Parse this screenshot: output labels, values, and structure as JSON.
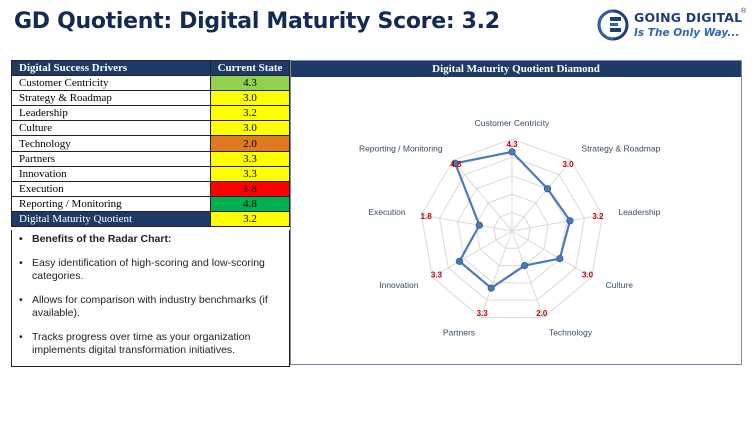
{
  "title": "GD Quotient: Digital Maturity Score: 3.2",
  "logo": {
    "line1": "GOING DIGITAL",
    "line2": "Is The Only Way...",
    "reg": "®"
  },
  "table": {
    "header_driver": "Digital  Success Drivers",
    "header_state": "Current State",
    "rows": [
      {
        "name": "Customer Centricity",
        "value": "4.3",
        "color": "#92d050"
      },
      {
        "name": "Strategy & Roadmap",
        "value": "3.0",
        "color": "#ffff00"
      },
      {
        "name": "Leadership",
        "value": "3.2",
        "color": "#ffff00"
      },
      {
        "name": "Culture",
        "value": "3.0",
        "color": "#ffff00"
      },
      {
        "name": "Technology",
        "value": "2.0",
        "color": "#e07a20"
      },
      {
        "name": "Partners",
        "value": "3.3",
        "color": "#ffff00"
      },
      {
        "name": "Innovation",
        "value": "3.3",
        "color": "#ffff00"
      },
      {
        "name": "Execution",
        "value": "1.8",
        "color": "#ff0000"
      },
      {
        "name": "Reporting / Monitoring",
        "value": "4.8",
        "color": "#00b050"
      }
    ],
    "quotient": {
      "name": "Digital Maturity Quotient",
      "value": "3.2",
      "color": "#ffff00"
    }
  },
  "benefits": {
    "heading": "Benefits of the Radar Chart:",
    "items": [
      "Easy identification of high-scoring and low-scoring categories.",
      "Allows for comparison with industry benchmarks (if available).",
      "Tracks progress over time as your organization implements digital transformation initiatives."
    ]
  },
  "chart_data": {
    "type": "radar",
    "title": "Digital Maturity Quotient Diamond",
    "categories": [
      "Customer Centricity",
      "Strategy & Roadmap",
      "Leadership",
      "Culture",
      "Technology",
      "Partners",
      "Innovation",
      "Execution",
      "Reporting / Monitoring"
    ],
    "values": [
      4.3,
      3.0,
      3.2,
      3.0,
      2.0,
      3.3,
      3.3,
      1.8,
      4.8
    ],
    "value_labels": [
      "4.3",
      "3.0",
      "3.2",
      "3.0",
      "2.0",
      "3.3",
      "3.3",
      "1.8",
      "4.8"
    ],
    "range": [
      0,
      5
    ],
    "rings": 5,
    "line_color": "#4a7ab8",
    "grid_color": "#d9d9d9",
    "label_color": "#c00000"
  }
}
